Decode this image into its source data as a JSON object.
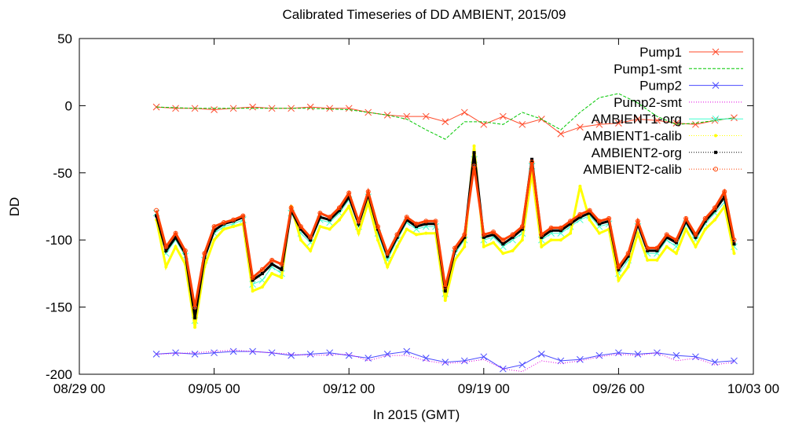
{
  "chart_data": {
    "type": "line",
    "title": "Calibrated Timeseries of DD AMBIENT, 2015/09",
    "xlabel": "In 2015 (GMT)",
    "ylabel": "DD",
    "xlim": [
      "2015-08-29",
      "2015-10-03"
    ],
    "ylim": [
      -200,
      50
    ],
    "x_ticks": [
      "08/29 00",
      "09/05 00",
      "09/12 00",
      "09/19 00",
      "09/26 00",
      "10/03 00"
    ],
    "y_ticks": [
      "50",
      "0",
      "-50",
      "-100",
      "-150",
      "-200"
    ],
    "legend_position": "top-right",
    "grid": false,
    "series": [
      {
        "name": "Pump1",
        "color": "#ff4a2a",
        "marker": "x",
        "x": [
          "2015-09-02",
          "2015-09-03",
          "2015-09-04",
          "2015-09-05",
          "2015-09-06",
          "2015-09-07",
          "2015-09-08",
          "2015-09-09",
          "2015-09-10",
          "2015-09-11",
          "2015-09-12",
          "2015-09-13",
          "2015-09-14",
          "2015-09-15",
          "2015-09-16",
          "2015-09-17",
          "2015-09-18",
          "2015-09-19",
          "2015-09-20",
          "2015-09-21",
          "2015-09-22",
          "2015-09-23",
          "2015-09-24",
          "2015-09-25",
          "2015-09-26",
          "2015-09-27",
          "2015-09-28",
          "2015-09-29",
          "2015-09-30",
          "2015-10-01",
          "2015-10-02"
        ],
        "y": [
          -1,
          -2,
          -2,
          -3,
          -2,
          -1,
          -2,
          -2,
          -1,
          -2,
          -2,
          -5,
          -7,
          -8,
          -8,
          -12,
          -5,
          -14,
          -8,
          -14,
          -10,
          -21,
          -16,
          -14,
          -13,
          -10,
          -11,
          -13,
          -14,
          -11,
          -9
        ]
      },
      {
        "name": "Pump1-smt",
        "color": "#00c800",
        "style": "dashed",
        "x": [
          "2015-09-02",
          "2015-09-04",
          "2015-09-06",
          "2015-09-08",
          "2015-09-10",
          "2015-09-12",
          "2015-09-14",
          "2015-09-15",
          "2015-09-16",
          "2015-09-17",
          "2015-09-18",
          "2015-09-19",
          "2015-09-20",
          "2015-09-21",
          "2015-09-22",
          "2015-09-23",
          "2015-09-24",
          "2015-09-25",
          "2015-09-26",
          "2015-09-27",
          "2015-09-28",
          "2015-09-29",
          "2015-09-30",
          "2015-10-01",
          "2015-10-02"
        ],
        "y": [
          -1,
          -2,
          -2,
          -2,
          -2,
          -3,
          -7,
          -10,
          -18,
          -25,
          -12,
          -12,
          -14,
          -5,
          -10,
          -18,
          -5,
          6,
          9,
          2,
          -8,
          -14,
          -13,
          -11,
          -9
        ]
      },
      {
        "name": "Pump2",
        "color": "#4a4aff",
        "marker": "x",
        "x": [
          "2015-09-02",
          "2015-09-03",
          "2015-09-04",
          "2015-09-05",
          "2015-09-06",
          "2015-09-07",
          "2015-09-08",
          "2015-09-09",
          "2015-09-10",
          "2015-09-11",
          "2015-09-12",
          "2015-09-13",
          "2015-09-14",
          "2015-09-15",
          "2015-09-16",
          "2015-09-17",
          "2015-09-18",
          "2015-09-19",
          "2015-09-20",
          "2015-09-21",
          "2015-09-22",
          "2015-09-23",
          "2015-09-24",
          "2015-09-25",
          "2015-09-26",
          "2015-09-27",
          "2015-09-28",
          "2015-09-29",
          "2015-09-30",
          "2015-10-01",
          "2015-10-02"
        ],
        "y": [
          -185,
          -184,
          -185,
          -184,
          -183,
          -183,
          -184,
          -186,
          -185,
          -184,
          -186,
          -188,
          -185,
          -183,
          -188,
          -191,
          -190,
          -187,
          -196,
          -193,
          -185,
          -190,
          -189,
          -186,
          -184,
          -185,
          -184,
          -186,
          -187,
          -191,
          -190
        ]
      },
      {
        "name": "Pump2-smt",
        "color": "#e000e0",
        "style": "dotted",
        "x": [
          "2015-09-02",
          "2015-09-04",
          "2015-09-06",
          "2015-09-08",
          "2015-09-10",
          "2015-09-12",
          "2015-09-13",
          "2015-09-14",
          "2015-09-15",
          "2015-09-16",
          "2015-09-17",
          "2015-09-18",
          "2015-09-19",
          "2015-09-20",
          "2015-09-21",
          "2015-09-22",
          "2015-09-23",
          "2015-09-24",
          "2015-09-25",
          "2015-09-26",
          "2015-09-27",
          "2015-09-28",
          "2015-09-29",
          "2015-09-30",
          "2015-10-01",
          "2015-10-02"
        ],
        "y": [
          -185,
          -184,
          -182,
          -184,
          -186,
          -185,
          -190,
          -186,
          -186,
          -190,
          -192,
          -191,
          -189,
          -196,
          -198,
          -190,
          -192,
          -190,
          -187,
          -185,
          -186,
          -184,
          -190,
          -188,
          -193,
          -191
        ]
      },
      {
        "name": "AMBIENT1-org",
        "color": "#40ffd0",
        "marker": "x",
        "x": [
          "2015-09-02",
          "2015-09-02.5",
          "2015-09-03",
          "2015-09-03.5",
          "2015-09-04",
          "2015-09-04.5",
          "2015-09-05",
          "2015-09-05.5",
          "2015-09-06",
          "2015-09-06.5",
          "2015-09-07",
          "2015-09-07.5",
          "2015-09-08",
          "2015-09-08.5",
          "2015-09-09",
          "2015-09-09.5",
          "2015-09-10",
          "2015-09-10.5",
          "2015-09-11",
          "2015-09-11.5",
          "2015-09-12",
          "2015-09-12.5",
          "2015-09-13",
          "2015-09-13.5",
          "2015-09-14",
          "2015-09-14.5",
          "2015-09-15",
          "2015-09-15.5",
          "2015-09-16",
          "2015-09-16.5",
          "2015-09-17",
          "2015-09-17.5",
          "2015-09-18",
          "2015-09-18.5",
          "2015-09-19",
          "2015-09-19.5",
          "2015-09-20",
          "2015-09-20.5",
          "2015-09-21",
          "2015-09-21.5",
          "2015-09-22",
          "2015-09-22.5",
          "2015-09-23",
          "2015-09-23.5",
          "2015-09-24",
          "2015-09-24.5",
          "2015-09-25",
          "2015-09-25.5",
          "2015-09-26",
          "2015-09-26.5",
          "2015-09-27",
          "2015-09-27.5",
          "2015-09-28",
          "2015-09-28.5",
          "2015-09-29",
          "2015-09-29.5",
          "2015-09-30",
          "2015-09-30.5",
          "2015-10-01",
          "2015-10-01.5",
          "2015-10-02"
        ],
        "y": [
          -80,
          -110,
          -100,
          -112,
          -160,
          -115,
          -95,
          -90,
          -88,
          -85,
          -133,
          -130,
          -120,
          -125,
          -80,
          -95,
          -102,
          -85,
          -87,
          -80,
          -70,
          -90,
          -68,
          -95,
          -115,
          -100,
          -87,
          -92,
          -90,
          -90,
          -140,
          -110,
          -100,
          -40,
          -100,
          -98,
          -105,
          -100,
          -95,
          -45,
          -100,
          -95,
          -95,
          -90,
          -85,
          -82,
          -90,
          -88,
          -125,
          -115,
          -90,
          -110,
          -110,
          -100,
          -105,
          -88,
          -100,
          -88,
          -80,
          -72,
          -105
        ]
      },
      {
        "name": "AMBIENT1-calib",
        "color": "#ffff00",
        "marker": "dot",
        "x": [
          "2015-09-02",
          "2015-09-02.5",
          "2015-09-03",
          "2015-09-03.5",
          "2015-09-04",
          "2015-09-04.5",
          "2015-09-05",
          "2015-09-05.5",
          "2015-09-06",
          "2015-09-06.5",
          "2015-09-07",
          "2015-09-07.5",
          "2015-09-08",
          "2015-09-08.5",
          "2015-09-09",
          "2015-09-09.5",
          "2015-09-10",
          "2015-09-10.5",
          "2015-09-11",
          "2015-09-11.5",
          "2015-09-12",
          "2015-09-12.5",
          "2015-09-13",
          "2015-09-13.5",
          "2015-09-14",
          "2015-09-14.5",
          "2015-09-15",
          "2015-09-15.5",
          "2015-09-16",
          "2015-09-16.5",
          "2015-09-17",
          "2015-09-17.5",
          "2015-09-18",
          "2015-09-18.5",
          "2015-09-19",
          "2015-09-19.5",
          "2015-09-20",
          "2015-09-20.5",
          "2015-09-21",
          "2015-09-21.5",
          "2015-09-22",
          "2015-09-22.5",
          "2015-09-23",
          "2015-09-23.5",
          "2015-09-24",
          "2015-09-24.5",
          "2015-09-25",
          "2015-09-25.5",
          "2015-09-26",
          "2015-09-26.5",
          "2015-09-27",
          "2015-09-27.5",
          "2015-09-28",
          "2015-09-28.5",
          "2015-09-29",
          "2015-09-29.5",
          "2015-09-30",
          "2015-09-30.5",
          "2015-10-01",
          "2015-10-01.5",
          "2015-10-02"
        ],
        "y": [
          -85,
          -120,
          -105,
          -118,
          -165,
          -120,
          -100,
          -92,
          -90,
          -88,
          -138,
          -135,
          -125,
          -128,
          -75,
          -100,
          -108,
          -90,
          -92,
          -85,
          -75,
          -95,
          -72,
          -100,
          -120,
          -105,
          -92,
          -96,
          -95,
          -95,
          -145,
          -115,
          -105,
          -30,
          -105,
          -102,
          -110,
          -108,
          -100,
          -50,
          -105,
          -100,
          -100,
          -95,
          -60,
          -85,
          -95,
          -92,
          -130,
          -120,
          -95,
          -115,
          -115,
          -105,
          -110,
          -92,
          -105,
          -92,
          -85,
          -75,
          -110
        ]
      },
      {
        "name": "AMBIENT2-org",
        "color": "#000000",
        "marker": "square",
        "x": [
          "2015-09-02",
          "2015-09-02.5",
          "2015-09-03",
          "2015-09-03.5",
          "2015-09-04",
          "2015-09-04.5",
          "2015-09-05",
          "2015-09-05.5",
          "2015-09-06",
          "2015-09-06.5",
          "2015-09-07",
          "2015-09-07.5",
          "2015-09-08",
          "2015-09-08.5",
          "2015-09-09",
          "2015-09-09.5",
          "2015-09-10",
          "2015-09-10.5",
          "2015-09-11",
          "2015-09-11.5",
          "2015-09-12",
          "2015-09-12.5",
          "2015-09-13",
          "2015-09-13.5",
          "2015-09-14",
          "2015-09-14.5",
          "2015-09-15",
          "2015-09-15.5",
          "2015-09-16",
          "2015-09-16.5",
          "2015-09-17",
          "2015-09-17.5",
          "2015-09-18",
          "2015-09-18.5",
          "2015-09-19",
          "2015-09-19.5",
          "2015-09-20",
          "2015-09-20.5",
          "2015-09-21",
          "2015-09-21.5",
          "2015-09-22",
          "2015-09-22.5",
          "2015-09-23",
          "2015-09-23.5",
          "2015-09-24",
          "2015-09-24.5",
          "2015-09-25",
          "2015-09-25.5",
          "2015-09-26",
          "2015-09-26.5",
          "2015-09-27",
          "2015-09-27.5",
          "2015-09-28",
          "2015-09-28.5",
          "2015-09-29",
          "2015-09-29.5",
          "2015-09-30",
          "2015-09-30.5",
          "2015-10-01",
          "2015-10-01.5",
          "2015-10-02"
        ],
        "y": [
          -82,
          -108,
          -98,
          -110,
          -158,
          -113,
          -93,
          -88,
          -86,
          -83,
          -130,
          -125,
          -118,
          -122,
          -78,
          -92,
          -100,
          -83,
          -85,
          -78,
          -68,
          -88,
          -66,
          -92,
          -112,
          -98,
          -85,
          -90,
          -88,
          -88,
          -138,
          -108,
          -98,
          -35,
          -98,
          -96,
          -103,
          -98,
          -92,
          -40,
          -98,
          -93,
          -93,
          -88,
          -83,
          -80,
          -88,
          -86,
          -122,
          -112,
          -88,
          -108,
          -108,
          -98,
          -102,
          -86,
          -98,
          -86,
          -78,
          -68,
          -103
        ]
      },
      {
        "name": "AMBIENT2-calib",
        "color": "#ff4000",
        "marker": "circle",
        "x": [
          "2015-09-02",
          "2015-09-02.5",
          "2015-09-03",
          "2015-09-03.5",
          "2015-09-04",
          "2015-09-04.5",
          "2015-09-05",
          "2015-09-05.5",
          "2015-09-06",
          "2015-09-06.5",
          "2015-09-07",
          "2015-09-07.5",
          "2015-09-08",
          "2015-09-08.5",
          "2015-09-09",
          "2015-09-09.5",
          "2015-09-10",
          "2015-09-10.5",
          "2015-09-11",
          "2015-09-11.5",
          "2015-09-12",
          "2015-09-12.5",
          "2015-09-13",
          "2015-09-13.5",
          "2015-09-14",
          "2015-09-14.5",
          "2015-09-15",
          "2015-09-15.5",
          "2015-09-16",
          "2015-09-16.5",
          "2015-09-17",
          "2015-09-17.5",
          "2015-09-18",
          "2015-09-18.5",
          "2015-09-19",
          "2015-09-19.5",
          "2015-09-20",
          "2015-09-20.5",
          "2015-09-21",
          "2015-09-21.5",
          "2015-09-22",
          "2015-09-22.5",
          "2015-09-23",
          "2015-09-23.5",
          "2015-09-24",
          "2015-09-24.5",
          "2015-09-25",
          "2015-09-25.5",
          "2015-09-26",
          "2015-09-26.5",
          "2015-09-27",
          "2015-09-27.5",
          "2015-09-28",
          "2015-09-28.5",
          "2015-09-29",
          "2015-09-29.5",
          "2015-09-30",
          "2015-09-30.5",
          "2015-10-01",
          "2015-10-01.5",
          "2015-10-02"
        ],
        "y": [
          -78,
          -105,
          -95,
          -108,
          -150,
          -110,
          -90,
          -87,
          -85,
          -82,
          -128,
          -122,
          -115,
          -118,
          -76,
          -90,
          -98,
          -80,
          -83,
          -76,
          -65,
          -86,
          -64,
          -90,
          -110,
          -96,
          -83,
          -88,
          -86,
          -86,
          -135,
          -106,
          -96,
          -45,
          -96,
          -94,
          -100,
          -96,
          -90,
          -42,
          -96,
          -91,
          -91,
          -86,
          -81,
          -78,
          -86,
          -84,
          -120,
          -110,
          -86,
          -106,
          -106,
          -96,
          -100,
          -84,
          -96,
          -84,
          -76,
          -64,
          -100
        ]
      }
    ]
  }
}
